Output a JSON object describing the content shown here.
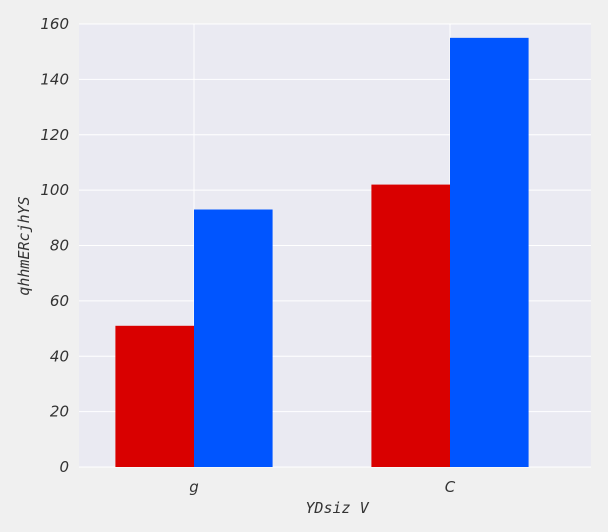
{
  "chart_data": {
    "type": "bar",
    "title": "",
    "xlabel": "YDsiz V",
    "ylabel": "qhhmERcjhYS",
    "categories": [
      "g",
      "C"
    ],
    "series": [
      {
        "color": "#d90000",
        "values": [
          51,
          102
        ]
      },
      {
        "color": "#0055ff",
        "values": [
          93,
          155
        ]
      }
    ],
    "ylim": [
      0,
      160
    ],
    "yticks": [
      0,
      20,
      40,
      60,
      80,
      100,
      120,
      140,
      160
    ],
    "grid": true,
    "legend": "none"
  },
  "colors": {
    "page_background": "#f0f0f0",
    "plot_background": "#eaeaf2",
    "grid": "#ffffff"
  }
}
